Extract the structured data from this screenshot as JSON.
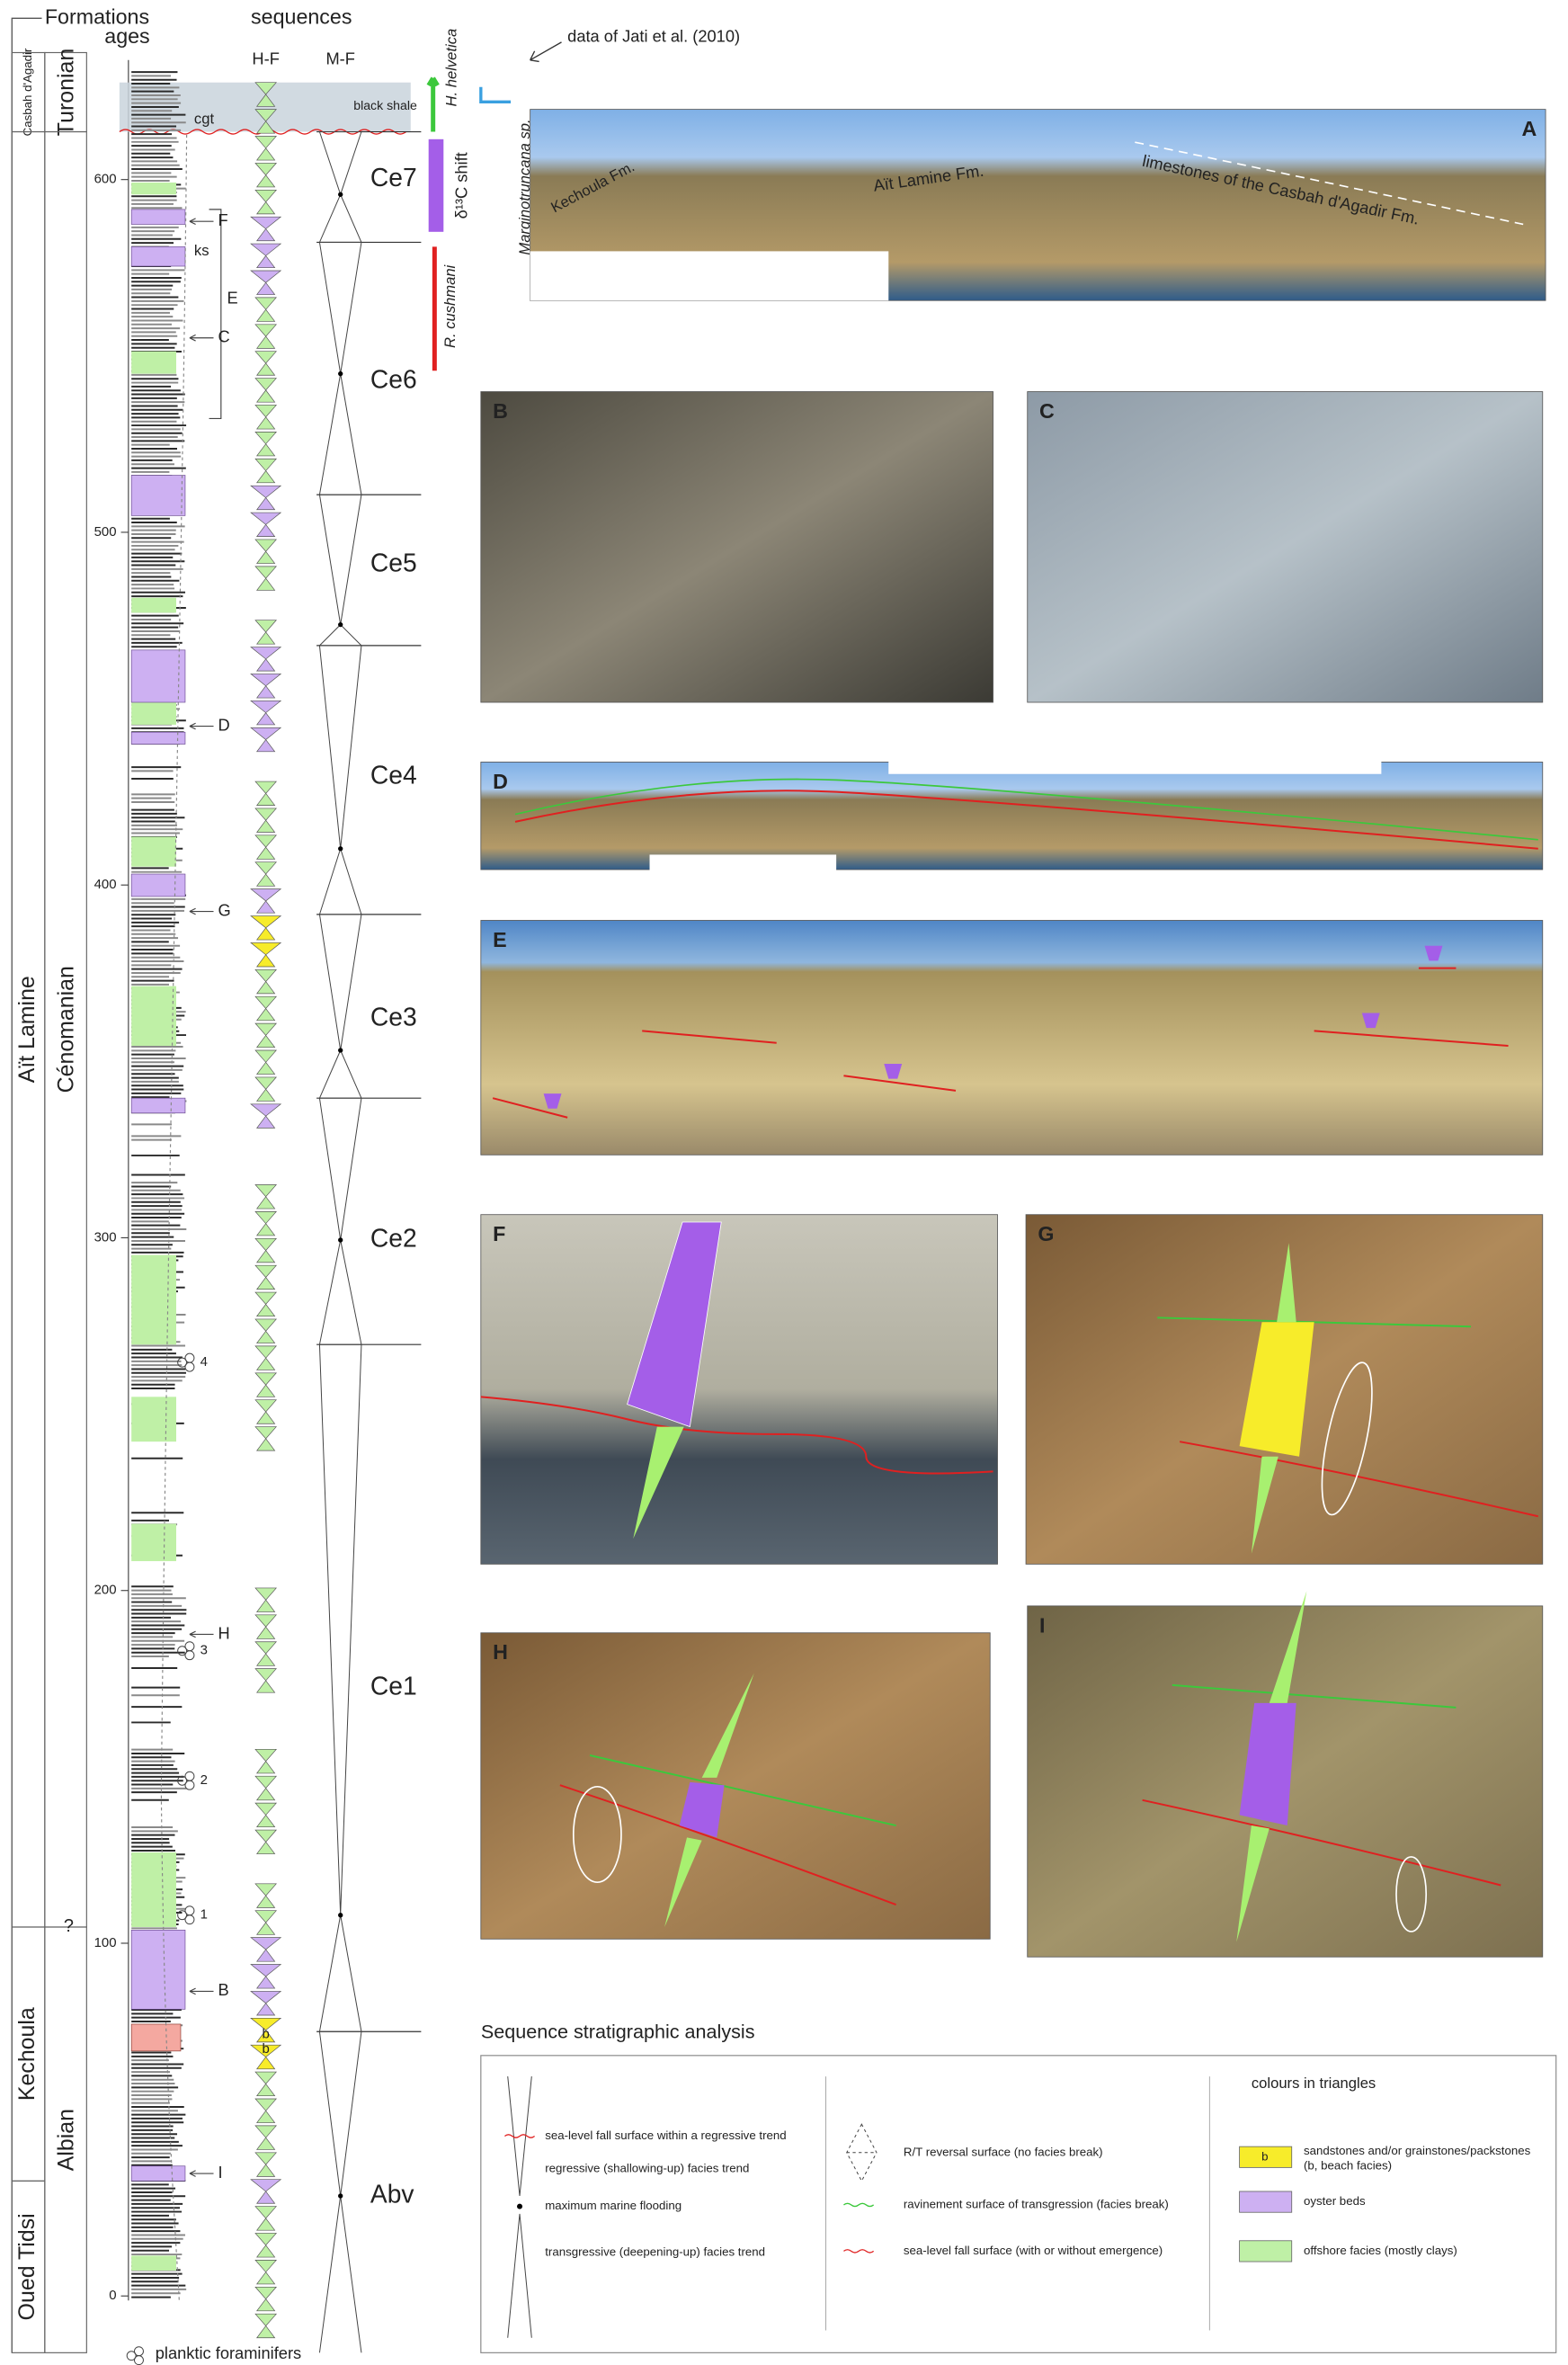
{
  "header": {
    "formations": "Formations",
    "ages": "ages",
    "sequences": "sequences",
    "hf": "H-F",
    "mf": "M-F",
    "source": "data of Jati et al. (2010)"
  },
  "formations": [
    "Casbah d'Agadir",
    "Aït Lamine",
    "Kechoula",
    "Oued Tidsi"
  ],
  "ages": [
    "Turonian",
    "Cénomanian",
    "Albian"
  ],
  "age_boundary_query": "?",
  "depth_ticks": [
    0,
    100,
    200,
    300,
    400,
    500,
    600
  ],
  "log_labels": {
    "cgt": "cgt",
    "ks": "ks",
    "E": "E",
    "arrows": [
      "F",
      "C",
      "D",
      "G",
      "H",
      "B",
      "I"
    ],
    "beach": [
      "b",
      "b"
    ]
  },
  "foraminifer_markers": [
    "4",
    "3",
    "2",
    "1"
  ],
  "black_shale": "black shale",
  "sequences": [
    "Ce7",
    "Ce6",
    "Ce5",
    "Ce4",
    "Ce3",
    "Ce2",
    "Ce1",
    "Abv"
  ],
  "biozones": {
    "helvetica": "H. helvetica",
    "marginotruncana": "Marginotruncana sp.",
    "cushmani": "R. cushmani",
    "shift": "δ¹³C shift"
  },
  "photos": [
    {
      "label": "A",
      "annotations": [
        "limestones of the Casbah d'Agadir Fm.",
        "Aït Lamine Fm.",
        "Kechoula Fm."
      ]
    },
    {
      "label": "B"
    },
    {
      "label": "C"
    },
    {
      "label": "D"
    },
    {
      "label": "E"
    },
    {
      "label": "F"
    },
    {
      "label": "G"
    },
    {
      "label": "H"
    },
    {
      "label": "I"
    }
  ],
  "legend": {
    "title": "Sequence stratigraphic analysis",
    "symbols": [
      "sea-level fall surface within a regressive trend",
      "regressive (shallowing-up) facies trend",
      "maximum marine flooding",
      "transgressive (deepening-up) facies trend"
    ],
    "surfaces": [
      "R/T reversal surface (no facies break)",
      "ravinement surface of transgression (facies break)",
      "sea-level fall surface (with or without emergence)"
    ],
    "colours_title": "colours in triangles",
    "colours": [
      {
        "swatch": "b",
        "label": "sandstones and/or grainstones/packstones (b, beach facies)"
      },
      {
        "label": "oyster beds"
      },
      {
        "label": "offshore facies (mostly clays)"
      }
    ]
  },
  "footnote": "planktic foraminifers"
}
